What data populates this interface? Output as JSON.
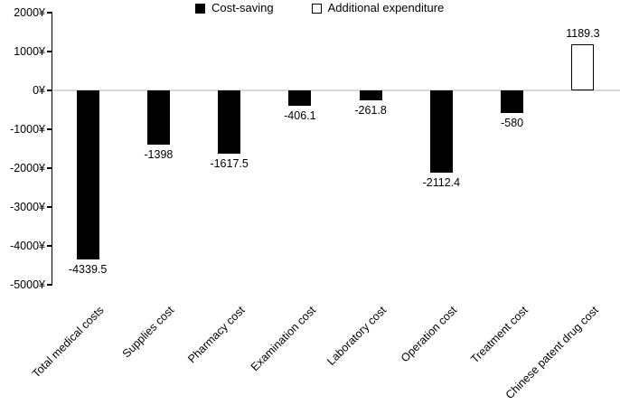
{
  "chart_data": {
    "type": "bar",
    "title": "",
    "categories": [
      "Total medical costs",
      "Supplies cost",
      "Pharmacy cost",
      "Examination cost",
      "Laboratory cost",
      "Operation cost",
      "Treatment cost",
      "Chinese patent drug cost"
    ],
    "values": [
      -4339.5,
      -1398,
      -1617.5,
      -406.1,
      -261.8,
      -2112.4,
      -580,
      1189.3
    ],
    "value_labels": [
      "-4339.5",
      "-1398",
      "-1617.5",
      "-406.1",
      "-261.8",
      "-2112.4",
      "-580",
      "1189.3"
    ],
    "legend": {
      "position": "top",
      "entries": [
        {
          "label": "Cost-saving",
          "fill": "#000000",
          "border": "#000000"
        },
        {
          "label": "Additional expenditure",
          "fill": "#ffffff",
          "border": "#000000"
        }
      ]
    },
    "y_axis": {
      "unit": "¥",
      "tick_labels": [
        "2000¥",
        "1000¥",
        "0¥",
        "-1000¥",
        "-2000¥",
        "-3000¥",
        "-4000¥",
        "-5000¥"
      ],
      "tick_values": [
        2000,
        1000,
        0,
        -1000,
        -2000,
        -3000,
        -4000,
        -5000
      ],
      "min": -5000,
      "max": 2000
    },
    "x_axis": {
      "label_rotation_deg": 45
    },
    "grid": {
      "zero_line": true,
      "zero_line_color": "#d9d9d9"
    },
    "colors": {
      "bar_negative_fill": "#000000",
      "bar_positive_fill": "#ffffff",
      "bar_positive_border": "#000000",
      "axis": "#000000",
      "text": "#000000"
    }
  }
}
